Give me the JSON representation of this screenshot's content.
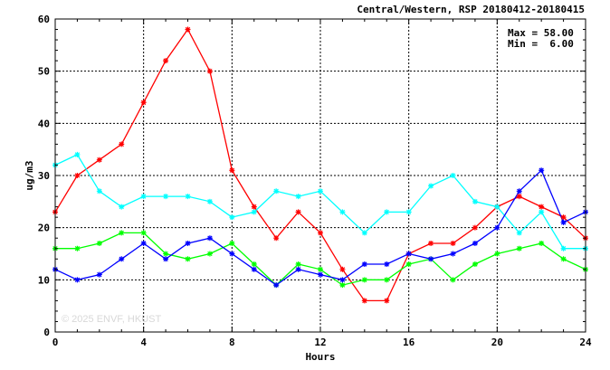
{
  "chart_data": {
    "type": "line",
    "title": "Central/Western, RSP 20180412-20180415",
    "xlabel": "Hours",
    "ylabel": "ug/m3",
    "xlim": [
      0,
      24
    ],
    "ylim": [
      0,
      60
    ],
    "xticks": [
      "0",
      "4",
      "8",
      "12",
      "16",
      "20",
      "24"
    ],
    "yticks": [
      "0",
      "10",
      "20",
      "30",
      "40",
      "50",
      "60"
    ],
    "grid": true,
    "stats": {
      "max_text": "Max = 58.00",
      "min_text": "Min =  6.00"
    },
    "watermark": "© 2025 ENVF, HKUST",
    "x": [
      0,
      1,
      2,
      3,
      4,
      5,
      6,
      7,
      8,
      9,
      10,
      11,
      12,
      13,
      14,
      15,
      16,
      17,
      18,
      19,
      20,
      21,
      22,
      23,
      24
    ],
    "series": [
      {
        "color": "#ff0000",
        "values": [
          23,
          30,
          33,
          36,
          44,
          52,
          58,
          50,
          31,
          24,
          18,
          23,
          19,
          12,
          6,
          6,
          15,
          17,
          17,
          20,
          24,
          26,
          24,
          22,
          18
        ]
      },
      {
        "color": "#00ffff",
        "values": [
          32,
          34,
          27,
          24,
          26,
          26,
          26,
          25,
          22,
          23,
          27,
          26,
          27,
          23,
          19,
          23,
          23,
          28,
          30,
          25,
          24,
          19,
          23,
          16,
          16
        ]
      },
      {
        "color": "#00ff00",
        "values": [
          16,
          16,
          17,
          19,
          19,
          15,
          14,
          15,
          17,
          13,
          9,
          13,
          12,
          9,
          10,
          10,
          13,
          14,
          10,
          13,
          15,
          16,
          17,
          14,
          12
        ]
      },
      {
        "color": "#0000ff",
        "values": [
          12,
          10,
          11,
          14,
          17,
          14,
          17,
          18,
          15,
          12,
          9,
          12,
          11,
          10,
          13,
          13,
          15,
          14,
          15,
          17,
          20,
          27,
          31,
          21,
          23
        ]
      }
    ]
  }
}
